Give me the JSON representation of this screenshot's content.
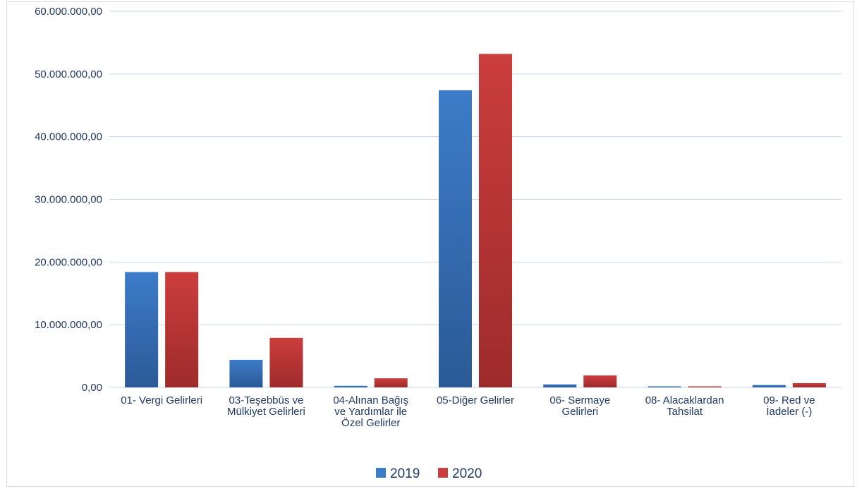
{
  "chart_data": {
    "type": "bar",
    "categories": [
      [
        "01- Vergi Gelirleri"
      ],
      [
        "03-Teşebbüs ve",
        "Mülkiyet Gelirleri"
      ],
      [
        "04-Alınan Bağış",
        "ve Yardımlar ile",
        "Özel Gelirler"
      ],
      [
        "05-Diğer Gelirler"
      ],
      [
        "06- Sermaye",
        "Gelirleri"
      ],
      [
        "08- Alacaklardan",
        "Tahsilat"
      ],
      [
        "09- Red ve",
        "İadeler (-)"
      ]
    ],
    "series": [
      {
        "name": "2019",
        "values": [
          18400000,
          4400000,
          250000,
          47400000,
          480000,
          150000,
          380000
        ]
      },
      {
        "name": "2020",
        "values": [
          18400000,
          7900000,
          1450000,
          53200000,
          1900000,
          130000,
          680000
        ]
      }
    ],
    "ylim": [
      0,
      60000000
    ],
    "yticks": [
      "0,00",
      "10.000.000,00",
      "20.000.000,00",
      "30.000.000,00",
      "40.000.000,00",
      "50.000.000,00",
      "60.000.000,00"
    ],
    "title": "",
    "xlabel": "",
    "ylabel": "",
    "grid": true,
    "legend_position": "bottom",
    "colors": {
      "series_2019_top": "#3d7cc9",
      "series_2019_bottom": "#2b5a97",
      "series_2020_top": "#cc3d3d",
      "series_2020_bottom": "#9e2b2b",
      "grid": "#c9d6ea",
      "text": "#1f3864"
    }
  }
}
